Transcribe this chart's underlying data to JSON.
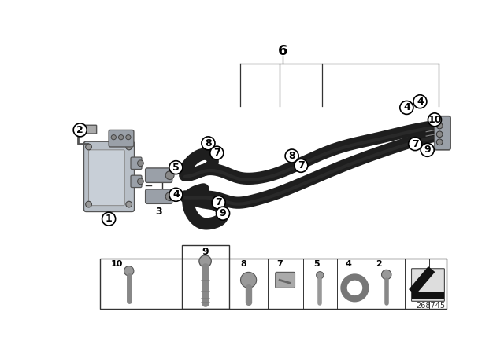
{
  "title": "",
  "bg_color": "#ffffff",
  "part_number": "268745",
  "hose_color": "#1e1e1e",
  "callout_bg": "#ffffff",
  "callout_edge": "#000000",
  "line_color": "#000000",
  "grey_part": "#a0a0a0",
  "dark_grey": "#555555"
}
